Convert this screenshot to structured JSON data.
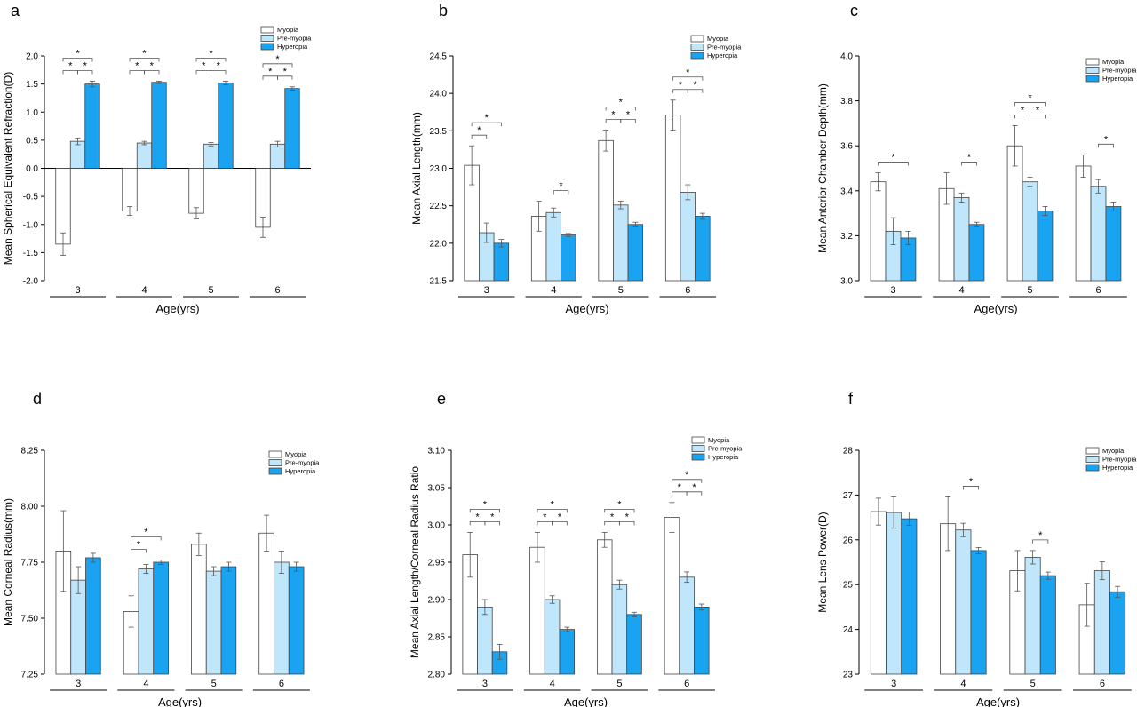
{
  "colors": {
    "Myopia": "#ffffff",
    "Pre-myopia": "#bfe6fb",
    "Hyperopia": "#1aa3f0",
    "stroke": "#444444"
  },
  "chart_data": [
    {
      "type": "bar",
      "panel_label": "a",
      "ylabel": "Mean Spherical Equivalent Refraction(D)",
      "xlabel": "Age(yrs)",
      "categories": [
        "3",
        "4",
        "5",
        "6"
      ],
      "ylim": [
        -2.0,
        2.0
      ],
      "yticks": [
        -2.0,
        -1.5,
        -1.0,
        -0.5,
        0.0,
        0.5,
        1.0,
        1.5,
        2.0
      ],
      "ytick_labels": [
        "-2.0",
        "-1.5",
        "-1.0",
        "-0.5",
        "0.0",
        "0.5",
        "1.0",
        "1.5",
        "2.0"
      ],
      "series": [
        {
          "name": "Myopia",
          "values": [
            -1.35,
            -0.76,
            -0.8,
            -1.05
          ],
          "errors": [
            0.2,
            0.08,
            0.1,
            0.18
          ]
        },
        {
          "name": "Pre-myopia",
          "values": [
            0.48,
            0.45,
            0.43,
            0.43
          ],
          "errors": [
            0.06,
            0.03,
            0.03,
            0.05
          ]
        },
        {
          "name": "Hyperopia",
          "values": [
            1.5,
            1.53,
            1.52,
            1.42
          ],
          "errors": [
            0.05,
            0.02,
            0.03,
            0.03
          ]
        }
      ],
      "zero_line": true,
      "legend_position": "top-right",
      "significance": [
        {
          "category": 0,
          "brackets": [
            [
              0,
              1
            ],
            [
              1,
              2
            ],
            [
              0,
              2
            ]
          ],
          "label": "*"
        },
        {
          "category": 1,
          "brackets": [
            [
              0,
              1
            ],
            [
              1,
              2
            ],
            [
              0,
              2
            ]
          ],
          "label": "*"
        },
        {
          "category": 2,
          "brackets": [
            [
              0,
              1
            ],
            [
              1,
              2
            ],
            [
              0,
              2
            ]
          ],
          "label": "*"
        },
        {
          "category": 3,
          "brackets": [
            [
              0,
              1
            ],
            [
              1,
              2
            ],
            [
              0,
              2
            ]
          ],
          "label": "*"
        }
      ]
    },
    {
      "type": "bar",
      "panel_label": "b",
      "ylabel": "Mean Axial Length(mm)",
      "xlabel": "Age(yrs)",
      "categories": [
        "3",
        "4",
        "5",
        "6"
      ],
      "ylim": [
        21.5,
        24.5
      ],
      "yticks": [
        21.5,
        22.0,
        22.5,
        23.0,
        23.5,
        24.0,
        24.5
      ],
      "ytick_labels": [
        "21.5",
        "22.0",
        "22.5",
        "23.0",
        "23.5",
        "24.0",
        "24.5"
      ],
      "series": [
        {
          "name": "Myopia",
          "values": [
            23.04,
            22.36,
            23.37,
            23.71
          ],
          "errors": [
            0.26,
            0.2,
            0.14,
            0.2
          ]
        },
        {
          "name": "Pre-myopia",
          "values": [
            22.14,
            22.41,
            22.51,
            22.68
          ],
          "errors": [
            0.13,
            0.06,
            0.05,
            0.1
          ]
        },
        {
          "name": "Hyperopia",
          "values": [
            22.0,
            22.11,
            22.25,
            22.36
          ],
          "errors": [
            0.05,
            0.02,
            0.03,
            0.04
          ]
        }
      ],
      "legend_position": "top-right",
      "significance": [
        {
          "category": 0,
          "brackets": [
            [
              0,
              1
            ],
            [
              0,
              2
            ]
          ],
          "label": "*"
        },
        {
          "category": 1,
          "brackets": [
            [
              1,
              2
            ]
          ],
          "label": "*"
        },
        {
          "category": 2,
          "brackets": [
            [
              0,
              1
            ],
            [
              1,
              2
            ],
            [
              0,
              2
            ]
          ],
          "label": "*"
        },
        {
          "category": 3,
          "brackets": [
            [
              0,
              1
            ],
            [
              1,
              2
            ],
            [
              0,
              2
            ]
          ],
          "label": "*"
        }
      ]
    },
    {
      "type": "bar",
      "panel_label": "c",
      "ylabel": "Mean Anterior Chamber Depth(mm)",
      "xlabel": "Age(yrs)",
      "categories": [
        "3",
        "4",
        "5",
        "6"
      ],
      "ylim": [
        3.0,
        4.0
      ],
      "yticks": [
        3.0,
        3.2,
        3.4,
        3.6,
        3.8,
        4.0
      ],
      "ytick_labels": [
        "3.0",
        "3.2",
        "3.4",
        "3.6",
        "3.8",
        "4.0"
      ],
      "series": [
        {
          "name": "Myopia",
          "values": [
            3.44,
            3.41,
            3.6,
            3.51
          ],
          "errors": [
            0.04,
            0.07,
            0.09,
            0.05
          ]
        },
        {
          "name": "Pre-myopia",
          "values": [
            3.22,
            3.37,
            3.44,
            3.42
          ],
          "errors": [
            0.06,
            0.02,
            0.02,
            0.03
          ]
        },
        {
          "name": "Hyperopia",
          "values": [
            3.19,
            3.25,
            3.31,
            3.33
          ],
          "errors": [
            0.03,
            0.01,
            0.02,
            0.02
          ]
        }
      ],
      "legend_position": "top-right",
      "significance": [
        {
          "category": 0,
          "brackets": [
            [
              0,
              2
            ]
          ],
          "label": "*"
        },
        {
          "category": 1,
          "brackets": [
            [
              1,
              2
            ]
          ],
          "label": "*"
        },
        {
          "category": 2,
          "brackets": [
            [
              0,
              1
            ],
            [
              1,
              2
            ],
            [
              0,
              2
            ]
          ],
          "label": "*"
        },
        {
          "category": 3,
          "brackets": [
            [
              1,
              2
            ]
          ],
          "label": "*"
        }
      ]
    },
    {
      "type": "bar",
      "panel_label": "d",
      "ylabel": "Mean Corneal Radius(mm)",
      "xlabel": "Age(yrs)",
      "categories": [
        "3",
        "4",
        "5",
        "6"
      ],
      "ylim": [
        7.25,
        8.25
      ],
      "yticks": [
        7.25,
        7.5,
        7.75,
        8.0,
        8.25
      ],
      "ytick_labels": [
        "7.25",
        "7.50",
        "7.75",
        "8.00",
        "8.25"
      ],
      "series": [
        {
          "name": "Myopia",
          "values": [
            7.8,
            7.53,
            7.83,
            7.88
          ],
          "errors": [
            0.18,
            0.07,
            0.05,
            0.08
          ]
        },
        {
          "name": "Pre-myopia",
          "values": [
            7.67,
            7.72,
            7.71,
            7.75
          ],
          "errors": [
            0.06,
            0.02,
            0.02,
            0.05
          ]
        },
        {
          "name": "Hyperopia",
          "values": [
            7.77,
            7.75,
            7.73,
            7.73
          ],
          "errors": [
            0.02,
            0.01,
            0.02,
            0.02
          ]
        }
      ],
      "legend_position": "top-right",
      "significance": [
        {
          "category": 1,
          "brackets": [
            [
              0,
              1
            ],
            [
              0,
              2
            ]
          ],
          "label": "*"
        }
      ]
    },
    {
      "type": "bar",
      "panel_label": "e",
      "ylabel": "Mean Axial Length/Corneal Radius Ratio",
      "xlabel": "Age(yrs)",
      "categories": [
        "3",
        "4",
        "5",
        "6"
      ],
      "ylim": [
        2.8,
        3.1
      ],
      "yticks": [
        2.8,
        2.85,
        2.9,
        2.95,
        3.0,
        3.05,
        3.1
      ],
      "ytick_labels": [
        "2.80",
        "2.85",
        "2.90",
        "2.95",
        "3.00",
        "3.05",
        "3.10"
      ],
      "series": [
        {
          "name": "Myopia",
          "values": [
            2.96,
            2.97,
            2.98,
            3.01
          ],
          "errors": [
            0.03,
            0.02,
            0.01,
            0.02
          ]
        },
        {
          "name": "Pre-myopia",
          "values": [
            2.89,
            2.9,
            2.92,
            2.93
          ],
          "errors": [
            0.01,
            0.005,
            0.006,
            0.007
          ]
        },
        {
          "name": "Hyperopia",
          "values": [
            2.83,
            2.86,
            2.88,
            2.89
          ],
          "errors": [
            0.01,
            0.003,
            0.003,
            0.004
          ]
        }
      ],
      "legend_position": "top-right",
      "significance": [
        {
          "category": 0,
          "brackets": [
            [
              0,
              1
            ],
            [
              1,
              2
            ],
            [
              0,
              2
            ]
          ],
          "label": "*"
        },
        {
          "category": 1,
          "brackets": [
            [
              0,
              1
            ],
            [
              1,
              2
            ],
            [
              0,
              2
            ]
          ],
          "label": "*"
        },
        {
          "category": 2,
          "brackets": [
            [
              0,
              1
            ],
            [
              1,
              2
            ],
            [
              0,
              2
            ]
          ],
          "label": "*"
        },
        {
          "category": 3,
          "brackets": [
            [
              0,
              1
            ],
            [
              1,
              2
            ],
            [
              0,
              2
            ]
          ],
          "label": "*"
        }
      ]
    },
    {
      "type": "bar",
      "panel_label": "f",
      "ylabel": "Mean Lens Power(D)",
      "xlabel": "Age(yrs)",
      "categories": [
        "3",
        "4",
        "5",
        "6"
      ],
      "ylim": [
        23,
        28
      ],
      "yticks": [
        23,
        24,
        25,
        26,
        27,
        28
      ],
      "ytick_labels": [
        "23",
        "24",
        "25",
        "26",
        "27",
        "28"
      ],
      "series": [
        {
          "name": "Myopia",
          "values": [
            26.63,
            26.36,
            25.31,
            24.55
          ],
          "errors": [
            0.3,
            0.6,
            0.45,
            0.48
          ]
        },
        {
          "name": "Pre-myopia",
          "values": [
            26.61,
            26.22,
            25.61,
            25.31
          ],
          "errors": [
            0.35,
            0.15,
            0.15,
            0.2
          ]
        },
        {
          "name": "Hyperopia",
          "values": [
            26.47,
            25.76,
            25.2,
            24.84
          ],
          "errors": [
            0.15,
            0.07,
            0.08,
            0.12
          ]
        }
      ],
      "legend_position": "top-right",
      "significance": [
        {
          "category": 1,
          "brackets": [
            [
              1,
              2
            ]
          ],
          "label": "*"
        },
        {
          "category": 2,
          "brackets": [
            [
              1,
              2
            ]
          ],
          "label": "*"
        }
      ]
    }
  ]
}
